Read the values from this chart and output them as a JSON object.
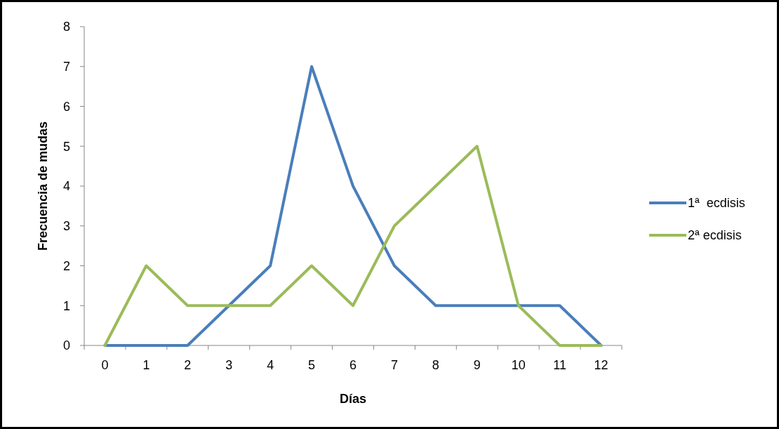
{
  "chart_data": {
    "type": "line",
    "xlabel": "Días",
    "ylabel": "Frecuencia de mudas",
    "categories": [
      "0",
      "1",
      "2",
      "3",
      "4",
      "5",
      "6",
      "7",
      "8",
      "9",
      "10",
      "11",
      "12"
    ],
    "series": [
      {
        "name": "1ª  ecdisis",
        "color": "#4a7ebb",
        "values": [
          0,
          0,
          0,
          1,
          2,
          7,
          4,
          2,
          1,
          1,
          1,
          1,
          0
        ]
      },
      {
        "name": "2ª ecdisis",
        "color": "#9bbb59",
        "values": [
          0,
          2,
          1,
          1,
          1,
          2,
          1,
          3,
          4,
          5,
          1,
          0,
          0
        ]
      }
    ],
    "ylim": [
      0,
      8
    ],
    "yticks": [
      0,
      1,
      2,
      3,
      4,
      5,
      6,
      7,
      8
    ],
    "grid": false,
    "legend": "right",
    "marker": "none",
    "line_style": "solid"
  }
}
